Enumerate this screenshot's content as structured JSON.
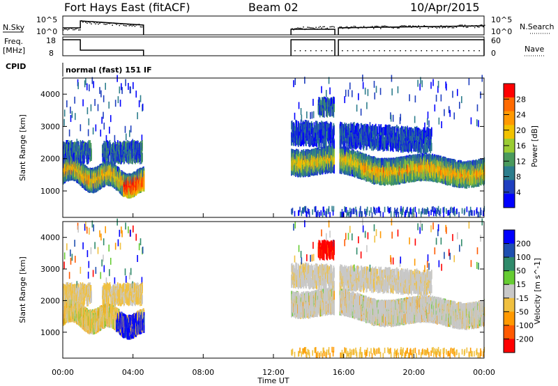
{
  "header": {
    "radar": "Fort Hays East (fitACF)",
    "beam": "Beam 02",
    "date": "10/Apr/2015"
  },
  "noise_panel": {
    "left_label": "N.Sky",
    "left_ticks": [
      "10^5",
      "10^0"
    ],
    "right_label": "N.Search",
    "right_ticks": [
      "10^5",
      "10^0"
    ]
  },
  "freq_panel": {
    "left_label_1": "Freq.",
    "left_label_2": "[MHz]",
    "left_ticks": [
      "18",
      "8"
    ],
    "right_label": "Nave",
    "right_ticks": [
      "60",
      "0"
    ]
  },
  "cpid_panel": {
    "label": "CPID",
    "value": "normal (fast) 151 IF"
  },
  "chart_data": [
    {
      "type": "heatmap",
      "title": "",
      "xlabel": "Time UT",
      "ylabel": "Slant Range [km]",
      "xlim": [
        0,
        24
      ],
      "ylim": [
        180,
        4500
      ],
      "x_ticks": [
        "00:00",
        "04:00",
        "08:00",
        "12:00",
        "16:00",
        "20:00",
        "00:00"
      ],
      "y_ticks": [
        "1000",
        "2000",
        "3000",
        "4000"
      ],
      "colorbar": {
        "label": "Power [dB]",
        "range": [
          0,
          30
        ],
        "ticks": [
          "4",
          "8",
          "12",
          "16",
          "20",
          "24",
          "28"
        ],
        "colors": [
          "#0000ff",
          "#1f3fbf",
          "#2c7d8c",
          "#4a9a5c",
          "#9bcc33",
          "#f2c200",
          "#ff9900",
          "#ff6a00",
          "#ff0000"
        ]
      },
      "data_gaps_hours": [
        [
          4.6,
          13.0
        ]
      ]
    },
    {
      "type": "heatmap",
      "title": "",
      "xlabel": "Time UT",
      "ylabel": "Slant Range [km]",
      "xlim": [
        0,
        24
      ],
      "ylim": [
        180,
        4500
      ],
      "x_ticks": [
        "00:00",
        "04:00",
        "08:00",
        "12:00",
        "16:00",
        "20:00",
        "00:00"
      ],
      "y_ticks": [
        "1000",
        "2000",
        "3000",
        "4000"
      ],
      "colorbar": {
        "label": "Velocity [m s^-1]",
        "range": [
          -250,
          250
        ],
        "ticks": [
          "200",
          "100",
          "50",
          "15",
          "-15",
          "-50",
          "-100",
          "-200"
        ],
        "colors": [
          "#0000ff",
          "#1f4fb0",
          "#2f8a6a",
          "#66cc33",
          "#c8c8c8",
          "#f0c040",
          "#ff9900",
          "#ff5a00",
          "#ff0000"
        ]
      },
      "data_gaps_hours": [
        [
          4.6,
          13.0
        ]
      ]
    }
  ],
  "x_axis_label": "Time UT"
}
